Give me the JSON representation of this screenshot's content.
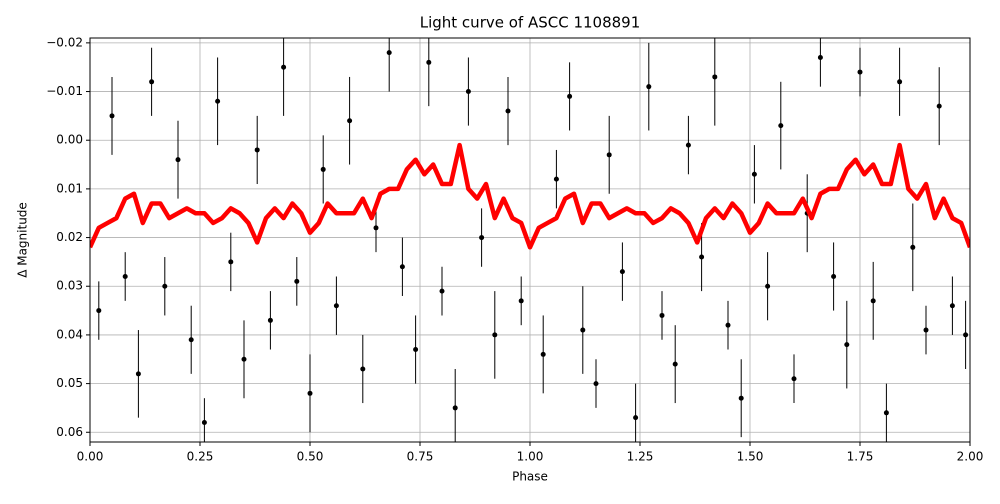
{
  "chart_data": {
    "type": "scatter",
    "title": "Light curve of ASCC 1108891",
    "xlabel": "Phase",
    "ylabel": "Δ Magnitude",
    "xlim": [
      0,
      2
    ],
    "ylim": [
      -0.021,
      0.062
    ],
    "y_inverted": true,
    "grid": true,
    "xticks": [
      {
        "value": 0,
        "label": "0.00"
      },
      {
        "value": 0.25,
        "label": "0.25"
      },
      {
        "value": 0.5,
        "label": "0.50"
      },
      {
        "value": 0.75,
        "label": "0.75"
      },
      {
        "value": 1,
        "label": "1.00"
      },
      {
        "value": 1.25,
        "label": "1.25"
      },
      {
        "value": 1.5,
        "label": "1.50"
      },
      {
        "value": 1.75,
        "label": "1.75"
      },
      {
        "value": 2,
        "label": "2.00"
      }
    ],
    "yticks": [
      {
        "value": -0.02,
        "label": "−0.02"
      },
      {
        "value": -0.01,
        "label": "−0.01"
      },
      {
        "value": 0,
        "label": "0.00"
      },
      {
        "value": 0.01,
        "label": "0.01"
      },
      {
        "value": 0.02,
        "label": "0.02"
      },
      {
        "value": 0.03,
        "label": "0.03"
      },
      {
        "value": 0.04,
        "label": "0.04"
      },
      {
        "value": 0.05,
        "label": "0.05"
      },
      {
        "value": 0.06,
        "label": "0.06"
      }
    ],
    "points": {
      "color": "#000000",
      "x": [
        0.02,
        0.05,
        0.08,
        0.11,
        0.14,
        0.17,
        0.2,
        0.23,
        0.26,
        0.29,
        0.32,
        0.35,
        0.38,
        0.41,
        0.44,
        0.47,
        0.5,
        0.53,
        0.56,
        0.59,
        0.62,
        0.65,
        0.68,
        0.71,
        0.74,
        0.77,
        0.8,
        0.83,
        0.86,
        0.89,
        0.92,
        0.95,
        0.98,
        1.03,
        1.06,
        1.09,
        1.12,
        1.15,
        1.18,
        1.21,
        1.24,
        1.27,
        1.3,
        1.33,
        1.36,
        1.39,
        1.42,
        1.45,
        1.48,
        1.51,
        1.54,
        1.57,
        1.6,
        1.63,
        1.66,
        1.69,
        1.72,
        1.75,
        1.78,
        1.81,
        1.84,
        1.87,
        1.9,
        1.93,
        1.96,
        1.99
      ],
      "y": [
        0.035,
        -0.005,
        0.028,
        0.048,
        -0.012,
        0.03,
        0.004,
        0.041,
        0.058,
        -0.008,
        0.025,
        0.045,
        0.002,
        0.037,
        -0.015,
        0.029,
        0.052,
        0.006,
        0.034,
        -0.004,
        0.047,
        0.018,
        -0.018,
        0.026,
        0.043,
        -0.016,
        0.031,
        0.055,
        -0.01,
        0.02,
        0.04,
        -0.006,
        0.033,
        0.044,
        0.008,
        -0.009,
        0.039,
        0.05,
        0.003,
        0.027,
        0.057,
        -0.011,
        0.036,
        0.046,
        0.001,
        0.024,
        -0.013,
        0.038,
        0.053,
        0.007,
        0.03,
        -0.003,
        0.049,
        0.015,
        -0.017,
        0.028,
        0.042,
        -0.014,
        0.033,
        0.056,
        -0.012,
        0.022,
        0.039,
        -0.007,
        0.034,
        0.04
      ],
      "yerr": [
        0.006,
        0.008,
        0.005,
        0.009,
        0.007,
        0.006,
        0.008,
        0.007,
        0.005,
        0.009,
        0.006,
        0.008,
        0.007,
        0.006,
        0.01,
        0.005,
        0.008,
        0.007,
        0.006,
        0.009,
        0.007,
        0.005,
        0.008,
        0.006,
        0.007,
        0.009,
        0.005,
        0.008,
        0.007,
        0.006,
        0.009,
        0.007,
        0.005,
        0.008,
        0.006,
        0.007,
        0.009,
        0.005,
        0.008,
        0.006,
        0.007,
        0.009,
        0.005,
        0.008,
        0.006,
        0.007,
        0.01,
        0.005,
        0.008,
        0.006,
        0.007,
        0.009,
        0.005,
        0.008,
        0.006,
        0.007,
        0.009,
        0.005,
        0.008,
        0.006,
        0.007,
        0.009,
        0.005,
        0.008,
        0.006,
        0.007
      ]
    },
    "curve": {
      "color": "#ff0000",
      "x": [
        0,
        0.02,
        0.04,
        0.06,
        0.08,
        0.1,
        0.12,
        0.14,
        0.16,
        0.18,
        0.2,
        0.22,
        0.24,
        0.26,
        0.28,
        0.3,
        0.32,
        0.34,
        0.36,
        0.38,
        0.4,
        0.42,
        0.44,
        0.46,
        0.48,
        0.5,
        0.52,
        0.54,
        0.56,
        0.58,
        0.6,
        0.62,
        0.64,
        0.66,
        0.68,
        0.7,
        0.72,
        0.74,
        0.76,
        0.78,
        0.8,
        0.82,
        0.84,
        0.86,
        0.88,
        0.9,
        0.92,
        0.94,
        0.96,
        0.98,
        1,
        1.02,
        1.04,
        1.06,
        1.08,
        1.1,
        1.12,
        1.14,
        1.16,
        1.18,
        1.2,
        1.22,
        1.24,
        1.26,
        1.28,
        1.3,
        1.32,
        1.34,
        1.36,
        1.38,
        1.4,
        1.42,
        1.44,
        1.46,
        1.48,
        1.5,
        1.52,
        1.54,
        1.56,
        1.58,
        1.6,
        1.62,
        1.64,
        1.66,
        1.68,
        1.7,
        1.72,
        1.74,
        1.76,
        1.78,
        1.8,
        1.82,
        1.84,
        1.86,
        1.88,
        1.9,
        1.92,
        1.94,
        1.96,
        1.98,
        2
      ],
      "y": [
        0.022,
        0.018,
        0.017,
        0.016,
        0.012,
        0.011,
        0.017,
        0.013,
        0.013,
        0.016,
        0.015,
        0.014,
        0.015,
        0.015,
        0.017,
        0.016,
        0.014,
        0.015,
        0.017,
        0.021,
        0.016,
        0.014,
        0.016,
        0.013,
        0.015,
        0.019,
        0.017,
        0.013,
        0.015,
        0.015,
        0.015,
        0.012,
        0.016,
        0.011,
        0.01,
        0.01,
        0.006,
        0.004,
        0.007,
        0.005,
        0.009,
        0.009,
        0.001,
        0.01,
        0.012,
        0.009,
        0.016,
        0.012,
        0.016,
        0.017,
        0.022,
        0.018,
        0.017,
        0.016,
        0.012,
        0.011,
        0.017,
        0.013,
        0.013,
        0.016,
        0.015,
        0.014,
        0.015,
        0.015,
        0.017,
        0.016,
        0.014,
        0.015,
        0.017,
        0.021,
        0.016,
        0.014,
        0.016,
        0.013,
        0.015,
        0.019,
        0.017,
        0.013,
        0.015,
        0.015,
        0.015,
        0.012,
        0.016,
        0.011,
        0.01,
        0.01,
        0.006,
        0.004,
        0.007,
        0.005,
        0.009,
        0.009,
        0.001,
        0.01,
        0.012,
        0.009,
        0.016,
        0.012,
        0.016,
        0.017,
        0.022
      ]
    }
  }
}
